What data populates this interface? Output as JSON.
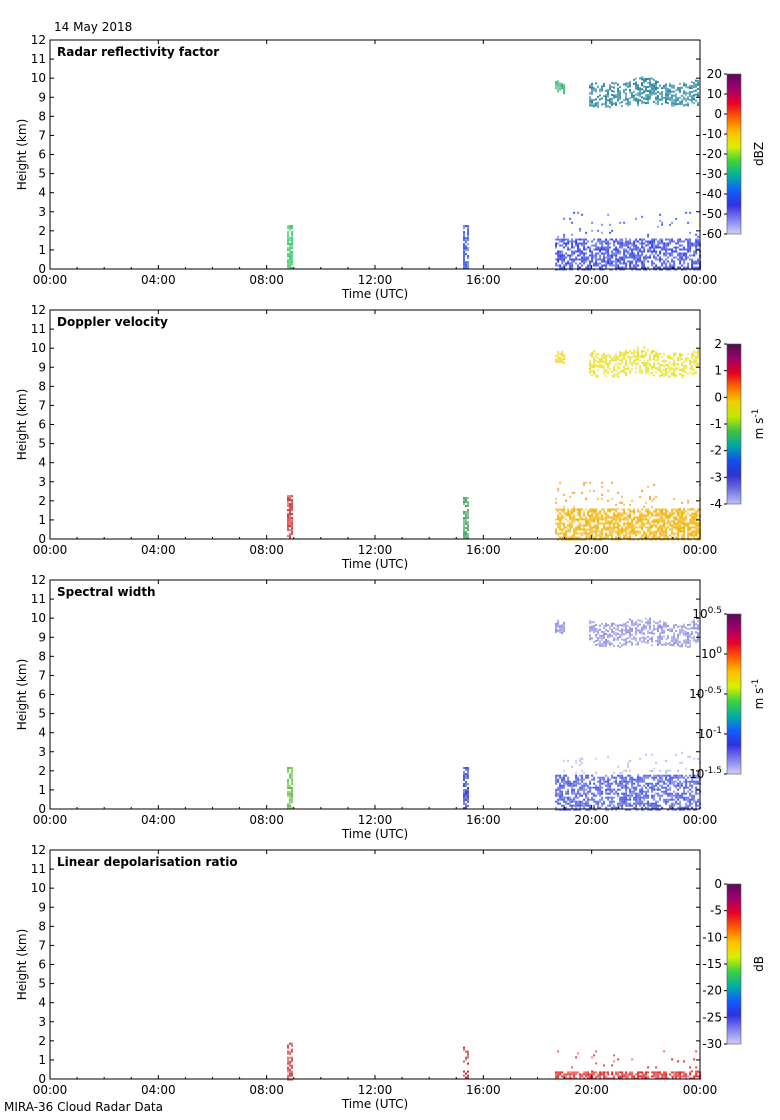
{
  "date_label": "14 May 2018",
  "footer_label": "MIRA-36 Cloud Radar Data",
  "chart_data": [
    {
      "type": "heatmap",
      "title": "Radar reflectivity factor",
      "xlabel": "Time (UTC)",
      "ylabel": "Height (km)",
      "xticks": [
        "00:00",
        "04:00",
        "08:00",
        "12:00",
        "16:00",
        "20:00",
        "00:00"
      ],
      "xlim_hours": [
        0,
        24
      ],
      "ylim": [
        0,
        12
      ],
      "yticks": [
        0,
        1,
        2,
        3,
        4,
        5,
        6,
        7,
        8,
        9,
        10,
        11,
        12
      ],
      "colorbar": {
        "label": "dBZ",
        "ticks": [
          "20",
          "10",
          "0",
          "-10",
          "-20",
          "-30",
          "-40",
          "-50",
          "-60"
        ],
        "range": [
          -60,
          20
        ]
      },
      "features": [
        {
          "t0": 8.75,
          "t1": 8.95,
          "h0": 0.0,
          "h1": 2.3,
          "color": "#30c860",
          "density": 0.8
        },
        {
          "t0": 15.25,
          "t1": 15.45,
          "h0": 0.0,
          "h1": 2.3,
          "color": "#3050e0",
          "density": 0.8
        },
        {
          "t0": 18.65,
          "t1": 24.0,
          "h0": 0.0,
          "h1": 1.6,
          "color": "#3040e0",
          "density": 0.6
        },
        {
          "t0": 18.65,
          "t1": 24.0,
          "h0": 1.6,
          "h1": 3.0,
          "color": "#4060e8",
          "density": 0.05
        },
        {
          "t0": 18.65,
          "t1": 19.0,
          "h0": 9.2,
          "h1": 10.0,
          "color": "#30b070",
          "density": 0.8
        },
        {
          "t0": 19.9,
          "t1": 23.9,
          "h0": 8.5,
          "h1": 10.0,
          "color": "#2080a0",
          "density": 0.55
        }
      ]
    },
    {
      "type": "heatmap",
      "title": "Doppler velocity",
      "xlabel": "Time (UTC)",
      "ylabel": "Height (km)",
      "xticks": [
        "00:00",
        "04:00",
        "08:00",
        "12:00",
        "16:00",
        "20:00",
        "00:00"
      ],
      "xlim_hours": [
        0,
        24
      ],
      "ylim": [
        0,
        12
      ],
      "yticks": [
        0,
        1,
        2,
        3,
        4,
        5,
        6,
        7,
        8,
        9,
        10,
        11,
        12
      ],
      "colorbar": {
        "label": "m s-1",
        "ticks": [
          "2",
          "1",
          "0",
          "-1",
          "-2",
          "-3",
          "-4"
        ],
        "range": [
          -4,
          2
        ]
      },
      "features": [
        {
          "t0": 8.75,
          "t1": 8.95,
          "h0": 0.0,
          "h1": 2.3,
          "color": "#d03030",
          "density": 0.8
        },
        {
          "t0": 15.25,
          "t1": 15.45,
          "h0": 0.0,
          "h1": 2.2,
          "color": "#40a060",
          "density": 0.8
        },
        {
          "t0": 18.65,
          "t1": 24.0,
          "h0": 0.0,
          "h1": 1.6,
          "color": "#f0b000",
          "density": 0.7
        },
        {
          "t0": 18.65,
          "t1": 24.0,
          "h0": 1.6,
          "h1": 3.0,
          "color": "#f0a030",
          "density": 0.05
        },
        {
          "t0": 18.65,
          "t1": 19.0,
          "h0": 9.2,
          "h1": 10.0,
          "color": "#f0d000",
          "density": 0.8
        },
        {
          "t0": 19.9,
          "t1": 23.9,
          "h0": 8.5,
          "h1": 10.0,
          "color": "#e8e020",
          "density": 0.55
        }
      ]
    },
    {
      "type": "heatmap",
      "title": "Spectral width",
      "xlabel": "Time (UTC)",
      "ylabel": "Height (km)",
      "xticks": [
        "00:00",
        "04:00",
        "08:00",
        "12:00",
        "16:00",
        "20:00",
        "00:00"
      ],
      "xlim_hours": [
        0,
        24
      ],
      "ylim": [
        0,
        12
      ],
      "yticks": [
        0,
        1,
        2,
        3,
        4,
        5,
        6,
        7,
        8,
        9,
        10,
        11,
        12
      ],
      "colorbar": {
        "label": "m s-1",
        "ticks": [
          "10^0.5",
          "10^0",
          "10^-0.5",
          "10^-1",
          "10^-1.5"
        ],
        "range": [
          -1.5,
          0.5
        ]
      },
      "features": [
        {
          "t0": 8.75,
          "t1": 8.95,
          "h0": 0.0,
          "h1": 2.2,
          "color": "#60c040",
          "density": 0.8
        },
        {
          "t0": 15.25,
          "t1": 15.45,
          "h0": 0.0,
          "h1": 2.2,
          "color": "#3040d0",
          "density": 0.8
        },
        {
          "t0": 18.65,
          "t1": 24.0,
          "h0": 0.0,
          "h1": 1.8,
          "color": "#4050e0",
          "density": 0.6
        },
        {
          "t0": 18.65,
          "t1": 24.0,
          "h0": 1.8,
          "h1": 3.0,
          "color": "#b0b8f0",
          "density": 0.05
        },
        {
          "t0": 18.65,
          "t1": 19.0,
          "h0": 9.2,
          "h1": 10.0,
          "color": "#8080e0",
          "density": 0.8
        },
        {
          "t0": 19.9,
          "t1": 23.9,
          "h0": 8.5,
          "h1": 10.0,
          "color": "#9090e8",
          "density": 0.55
        }
      ]
    },
    {
      "type": "heatmap",
      "title": "Linear depolarisation ratio",
      "xlabel": "Time (UTC)",
      "ylabel": "Height (km)",
      "xticks": [
        "00:00",
        "04:00",
        "08:00",
        "12:00",
        "16:00",
        "20:00",
        "00:00"
      ],
      "xlim_hours": [
        0,
        24
      ],
      "ylim": [
        0,
        12
      ],
      "yticks": [
        0,
        1,
        2,
        3,
        4,
        5,
        6,
        7,
        8,
        9,
        10,
        11,
        12
      ],
      "colorbar": {
        "label": "dB",
        "ticks": [
          "0",
          "-5",
          "-10",
          "-15",
          "-20",
          "-25",
          "-30"
        ],
        "range": [
          -30,
          0
        ]
      },
      "features": [
        {
          "t0": 8.75,
          "t1": 8.95,
          "h0": 0.0,
          "h1": 1.9,
          "color": "#d04040",
          "density": 0.7
        },
        {
          "t0": 15.25,
          "t1": 15.45,
          "h0": 0.0,
          "h1": 1.7,
          "color": "#c02020",
          "density": 0.5
        },
        {
          "t0": 18.65,
          "t1": 24.0,
          "h0": 0.0,
          "h1": 0.4,
          "color": "#e02020",
          "density": 0.7
        },
        {
          "t0": 18.65,
          "t1": 24.0,
          "h0": 0.4,
          "h1": 1.5,
          "color": "#e03030",
          "density": 0.04
        }
      ]
    }
  ]
}
